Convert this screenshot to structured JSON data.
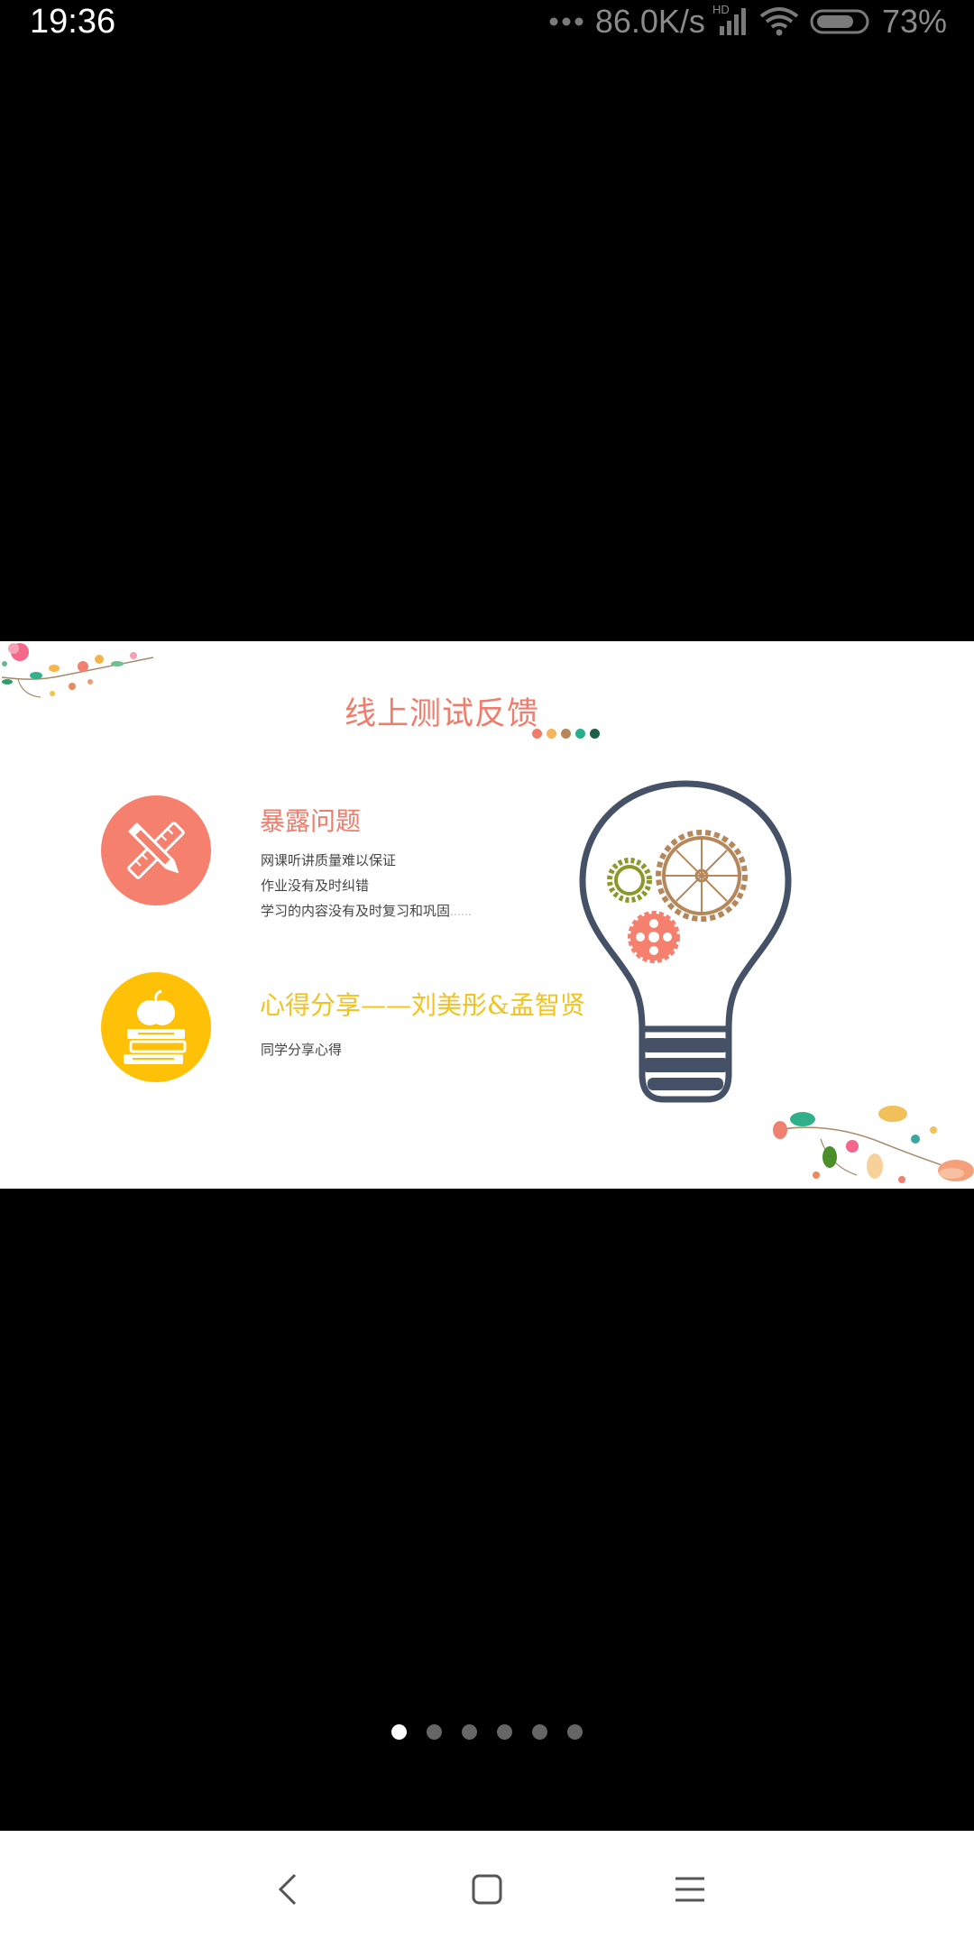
{
  "status_bar": {
    "time": "19:36",
    "network_speed": "86.0K/s",
    "signal_label": "HD",
    "battery": "73%",
    "icons": [
      "more-dots-icon",
      "signal-icon",
      "wifi-icon",
      "battery-icon"
    ]
  },
  "slide": {
    "title": "线上测试反馈",
    "title_dot_colors": [
      "#f07c6c",
      "#f5b35c",
      "#b5875a",
      "#27ae8a",
      "#1e5e4a"
    ],
    "sections": [
      {
        "heading": "暴露问题",
        "icon": "ruler-pencil-icon",
        "color": "#f5806e",
        "lines": [
          "网课听讲质量难以保证",
          "作业没有及时纠错",
          "学习的内容没有及时复习和巩固"
        ],
        "ellipsis": "……"
      },
      {
        "heading": "心得分享——刘美彤&孟智贤",
        "icon": "apple-books-icon",
        "color": "#ffc107",
        "lines": [
          "同学分享心得"
        ]
      }
    ],
    "illustration": "lightbulb-gears-icon"
  },
  "pager": {
    "count": 6,
    "active_index": 0
  },
  "nav_bar": {
    "buttons": [
      "back-icon",
      "home-icon",
      "menu-icon"
    ]
  }
}
